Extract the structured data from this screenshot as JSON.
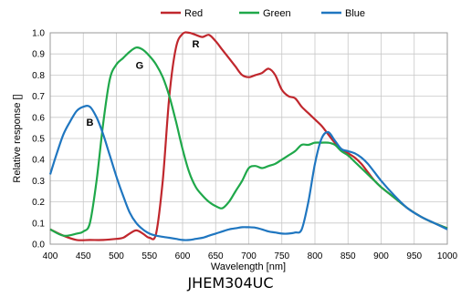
{
  "chart_data": {
    "type": "line",
    "xlabel": "Wavelength [nm]",
    "ylabel": "Relative response []",
    "xlim": [
      400,
      1000
    ],
    "ylim": [
      0,
      1.0
    ],
    "x_ticks": [
      400,
      450,
      500,
      550,
      600,
      650,
      700,
      750,
      800,
      850,
      900,
      950,
      1000
    ],
    "y_ticks": [
      0.0,
      0.1,
      0.2,
      0.3,
      0.4,
      0.5,
      0.6,
      0.7,
      0.8,
      0.9,
      1.0
    ],
    "grid": true,
    "legend_position": "top-center",
    "series": [
      {
        "name": "Red",
        "color": "#c0272d",
        "x": [
          400,
          420,
          440,
          460,
          480,
          500,
          510,
          520,
          530,
          540,
          550,
          560,
          570,
          580,
          590,
          600,
          610,
          620,
          630,
          640,
          650,
          660,
          670,
          680,
          690,
          700,
          710,
          720,
          730,
          740,
          750,
          760,
          770,
          780,
          790,
          800,
          810,
          820,
          830,
          840,
          850,
          860,
          870,
          880,
          890,
          900,
          920,
          940,
          960,
          980,
          1000
        ],
        "y": [
          0.07,
          0.04,
          0.02,
          0.02,
          0.02,
          0.025,
          0.03,
          0.05,
          0.065,
          0.05,
          0.03,
          0.05,
          0.3,
          0.7,
          0.93,
          0.995,
          1.0,
          0.99,
          0.98,
          0.99,
          0.96,
          0.92,
          0.88,
          0.84,
          0.8,
          0.79,
          0.8,
          0.81,
          0.83,
          0.8,
          0.73,
          0.7,
          0.69,
          0.65,
          0.62,
          0.59,
          0.56,
          0.52,
          0.48,
          0.45,
          0.43,
          0.41,
          0.38,
          0.34,
          0.3,
          0.27,
          0.22,
          0.17,
          0.13,
          0.1,
          0.075
        ]
      },
      {
        "name": "Green",
        "color": "#1fa84a",
        "x": [
          400,
          420,
          440,
          450,
          460,
          470,
          480,
          490,
          500,
          510,
          520,
          530,
          540,
          550,
          560,
          570,
          580,
          590,
          600,
          610,
          620,
          630,
          640,
          650,
          660,
          670,
          680,
          690,
          700,
          710,
          720,
          730,
          740,
          750,
          760,
          770,
          780,
          790,
          800,
          810,
          820,
          830,
          840,
          850,
          860,
          870,
          880,
          890,
          900,
          920,
          940,
          960,
          980,
          1000
        ],
        "y": [
          0.07,
          0.04,
          0.05,
          0.06,
          0.1,
          0.3,
          0.57,
          0.78,
          0.85,
          0.88,
          0.91,
          0.93,
          0.92,
          0.89,
          0.85,
          0.79,
          0.7,
          0.58,
          0.45,
          0.34,
          0.27,
          0.23,
          0.2,
          0.18,
          0.17,
          0.2,
          0.25,
          0.3,
          0.36,
          0.37,
          0.36,
          0.37,
          0.38,
          0.4,
          0.42,
          0.44,
          0.47,
          0.47,
          0.48,
          0.48,
          0.48,
          0.47,
          0.44,
          0.42,
          0.39,
          0.36,
          0.33,
          0.3,
          0.27,
          0.22,
          0.17,
          0.13,
          0.1,
          0.075
        ]
      },
      {
        "name": "Blue",
        "color": "#1f76c0",
        "x": [
          400,
          410,
          420,
          430,
          440,
          450,
          460,
          470,
          480,
          490,
          500,
          510,
          520,
          530,
          540,
          550,
          560,
          570,
          580,
          590,
          600,
          610,
          620,
          630,
          640,
          650,
          660,
          670,
          680,
          690,
          700,
          710,
          720,
          730,
          740,
          750,
          760,
          770,
          780,
          790,
          800,
          810,
          820,
          830,
          840,
          850,
          860,
          870,
          880,
          890,
          900,
          920,
          940,
          960,
          980,
          1000
        ],
        "y": [
          0.33,
          0.43,
          0.52,
          0.58,
          0.63,
          0.65,
          0.65,
          0.6,
          0.52,
          0.42,
          0.32,
          0.23,
          0.15,
          0.1,
          0.07,
          0.05,
          0.04,
          0.035,
          0.03,
          0.025,
          0.02,
          0.02,
          0.025,
          0.03,
          0.04,
          0.05,
          0.06,
          0.07,
          0.075,
          0.08,
          0.08,
          0.078,
          0.07,
          0.06,
          0.055,
          0.05,
          0.05,
          0.055,
          0.07,
          0.2,
          0.38,
          0.5,
          0.53,
          0.49,
          0.45,
          0.44,
          0.43,
          0.41,
          0.38,
          0.34,
          0.3,
          0.23,
          0.17,
          0.13,
          0.1,
          0.07
        ]
      }
    ],
    "annotations": [
      {
        "text": "R",
        "x": 620,
        "y": 0.93
      },
      {
        "text": "G",
        "x": 535,
        "y": 0.83
      },
      {
        "text": "B",
        "x": 460,
        "y": 0.56
      }
    ],
    "caption": "JHEM304UC"
  }
}
